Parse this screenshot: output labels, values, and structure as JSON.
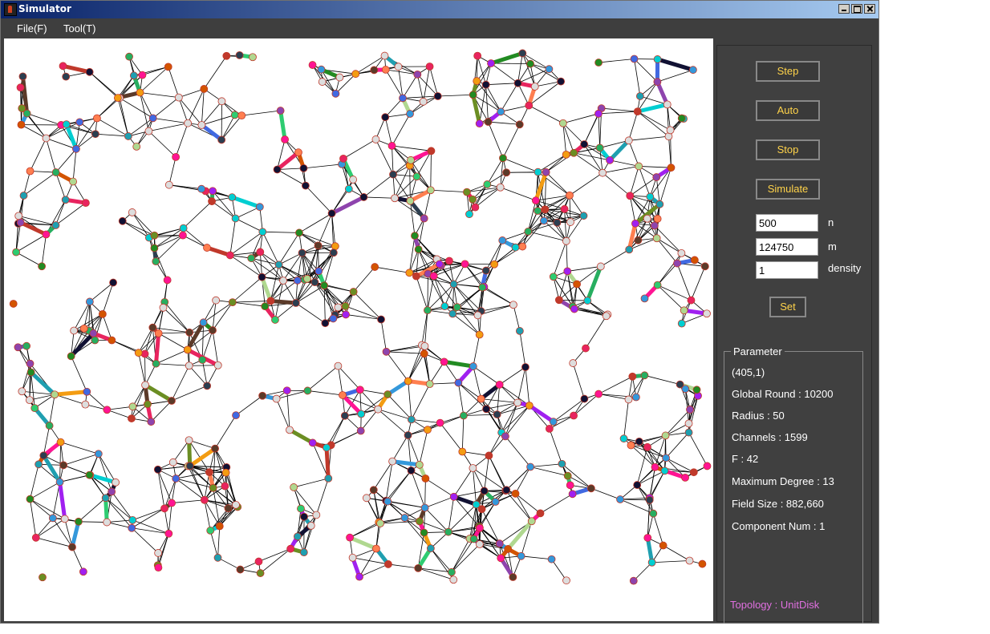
{
  "window": {
    "title": "Simulator"
  },
  "menu": [
    {
      "label": "File(F)"
    },
    {
      "label": "Tool(T)"
    }
  ],
  "buttons": {
    "step": "Step",
    "auto": "Auto",
    "stop": "Stop",
    "simulate": "Simulate",
    "set": "Set"
  },
  "inputs": {
    "n": {
      "value": "500",
      "label": "n"
    },
    "m": {
      "value": "124750",
      "label": "m"
    },
    "density": {
      "value": "1",
      "label": "density"
    }
  },
  "parameter": {
    "title": "Parameter",
    "coord": "(405,1)",
    "global_round": "Global Round : 10200",
    "radius": "Radius : 50",
    "channels": "Channels : 1599",
    "f": "F : 42",
    "max_degree": "Maximum Degree : 13",
    "field_size": "Field Size : 882,660",
    "component_num": "Component Num : 1"
  },
  "topology": "Topology : UnitDisk",
  "colors": {
    "button_text": "#ffd34a",
    "topology_text": "#e070e0",
    "panel_bg": "#404040"
  }
}
